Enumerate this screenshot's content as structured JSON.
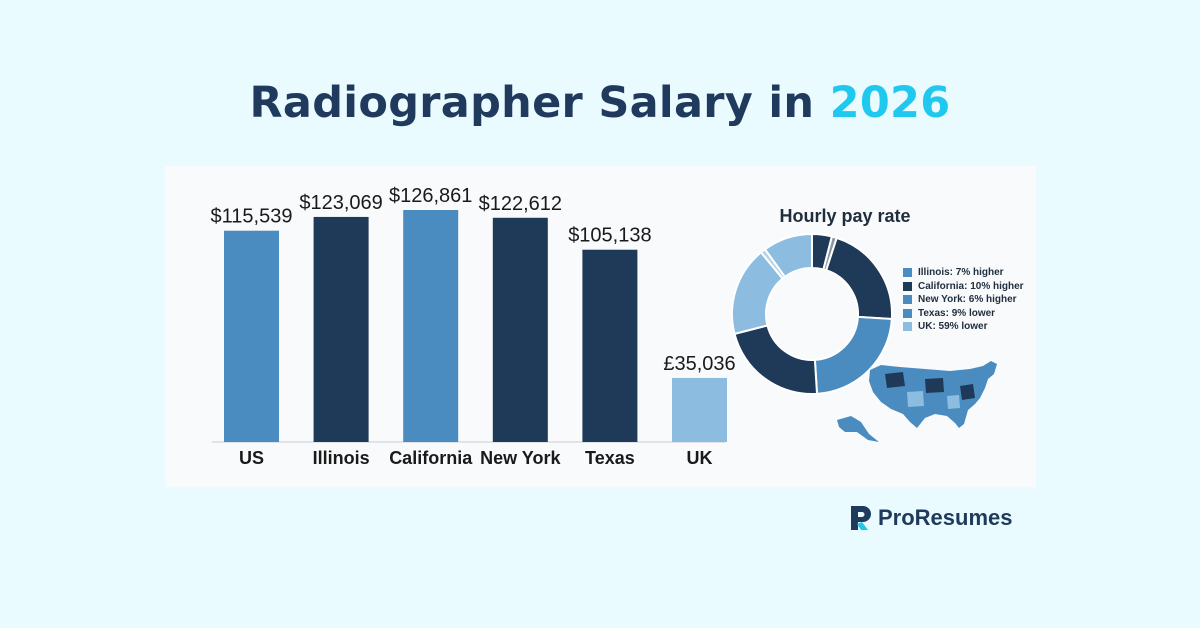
{
  "header": {
    "title_main": "Radiographer Salary in",
    "title_year": "2026"
  },
  "colors": {
    "background": "#e9fbff",
    "title": "#1f3a5c",
    "accent": "#21c8ee",
    "bar_medium_blue": "#4a8cbf",
    "bar_navy": "#1e3a58",
    "bar_light_blue": "#8cbde0"
  },
  "chart_data": [
    {
      "type": "bar",
      "categories": [
        "US",
        "Illinois",
        "California",
        "New York",
        "Texas",
        "UK"
      ],
      "values": [
        115539,
        123069,
        126861,
        122612,
        105138,
        35036
      ],
      "value_labels": [
        "$115,539",
        "$123,069",
        "$126,861",
        "$122,612",
        "$105,138",
        "£35,036"
      ],
      "bar_colors": [
        "#4a8cbf",
        "#1e3a58",
        "#4a8cbf",
        "#1e3a58",
        "#1e3a58",
        "#8cbde0"
      ],
      "title": "",
      "xlabel": "",
      "ylabel": "",
      "grid": false,
      "note": ""
    },
    {
      "type": "pie",
      "title": "Hourly pay rate",
      "legend_position": "right",
      "categories": [
        "Illinois: 7% higher",
        "California: 10% higher",
        "New York: 6% higher",
        "Texas: 9% lower",
        "UK: 59% lower"
      ],
      "legend_colors": [
        "#4a8cbf",
        "#1e3a58",
        "#4a8cbf",
        "#4a8cbf",
        "#8cbde0"
      ],
      "slices": [
        {
          "value": 4,
          "color": "#1e3a58"
        },
        {
          "value": 1,
          "color": "#8a97a3"
        },
        {
          "value": 21,
          "color": "#1e3a58"
        },
        {
          "value": 23,
          "color": "#4a8cbf"
        },
        {
          "value": 22,
          "color": "#1e3a58"
        },
        {
          "value": 18,
          "color": "#8cbde0"
        },
        {
          "value": 1,
          "color": "#b9d3e6"
        },
        {
          "value": 10,
          "color": "#8cbde0"
        }
      ]
    }
  ],
  "brand": {
    "name": "ProResumes",
    "logo_letter": "R"
  }
}
